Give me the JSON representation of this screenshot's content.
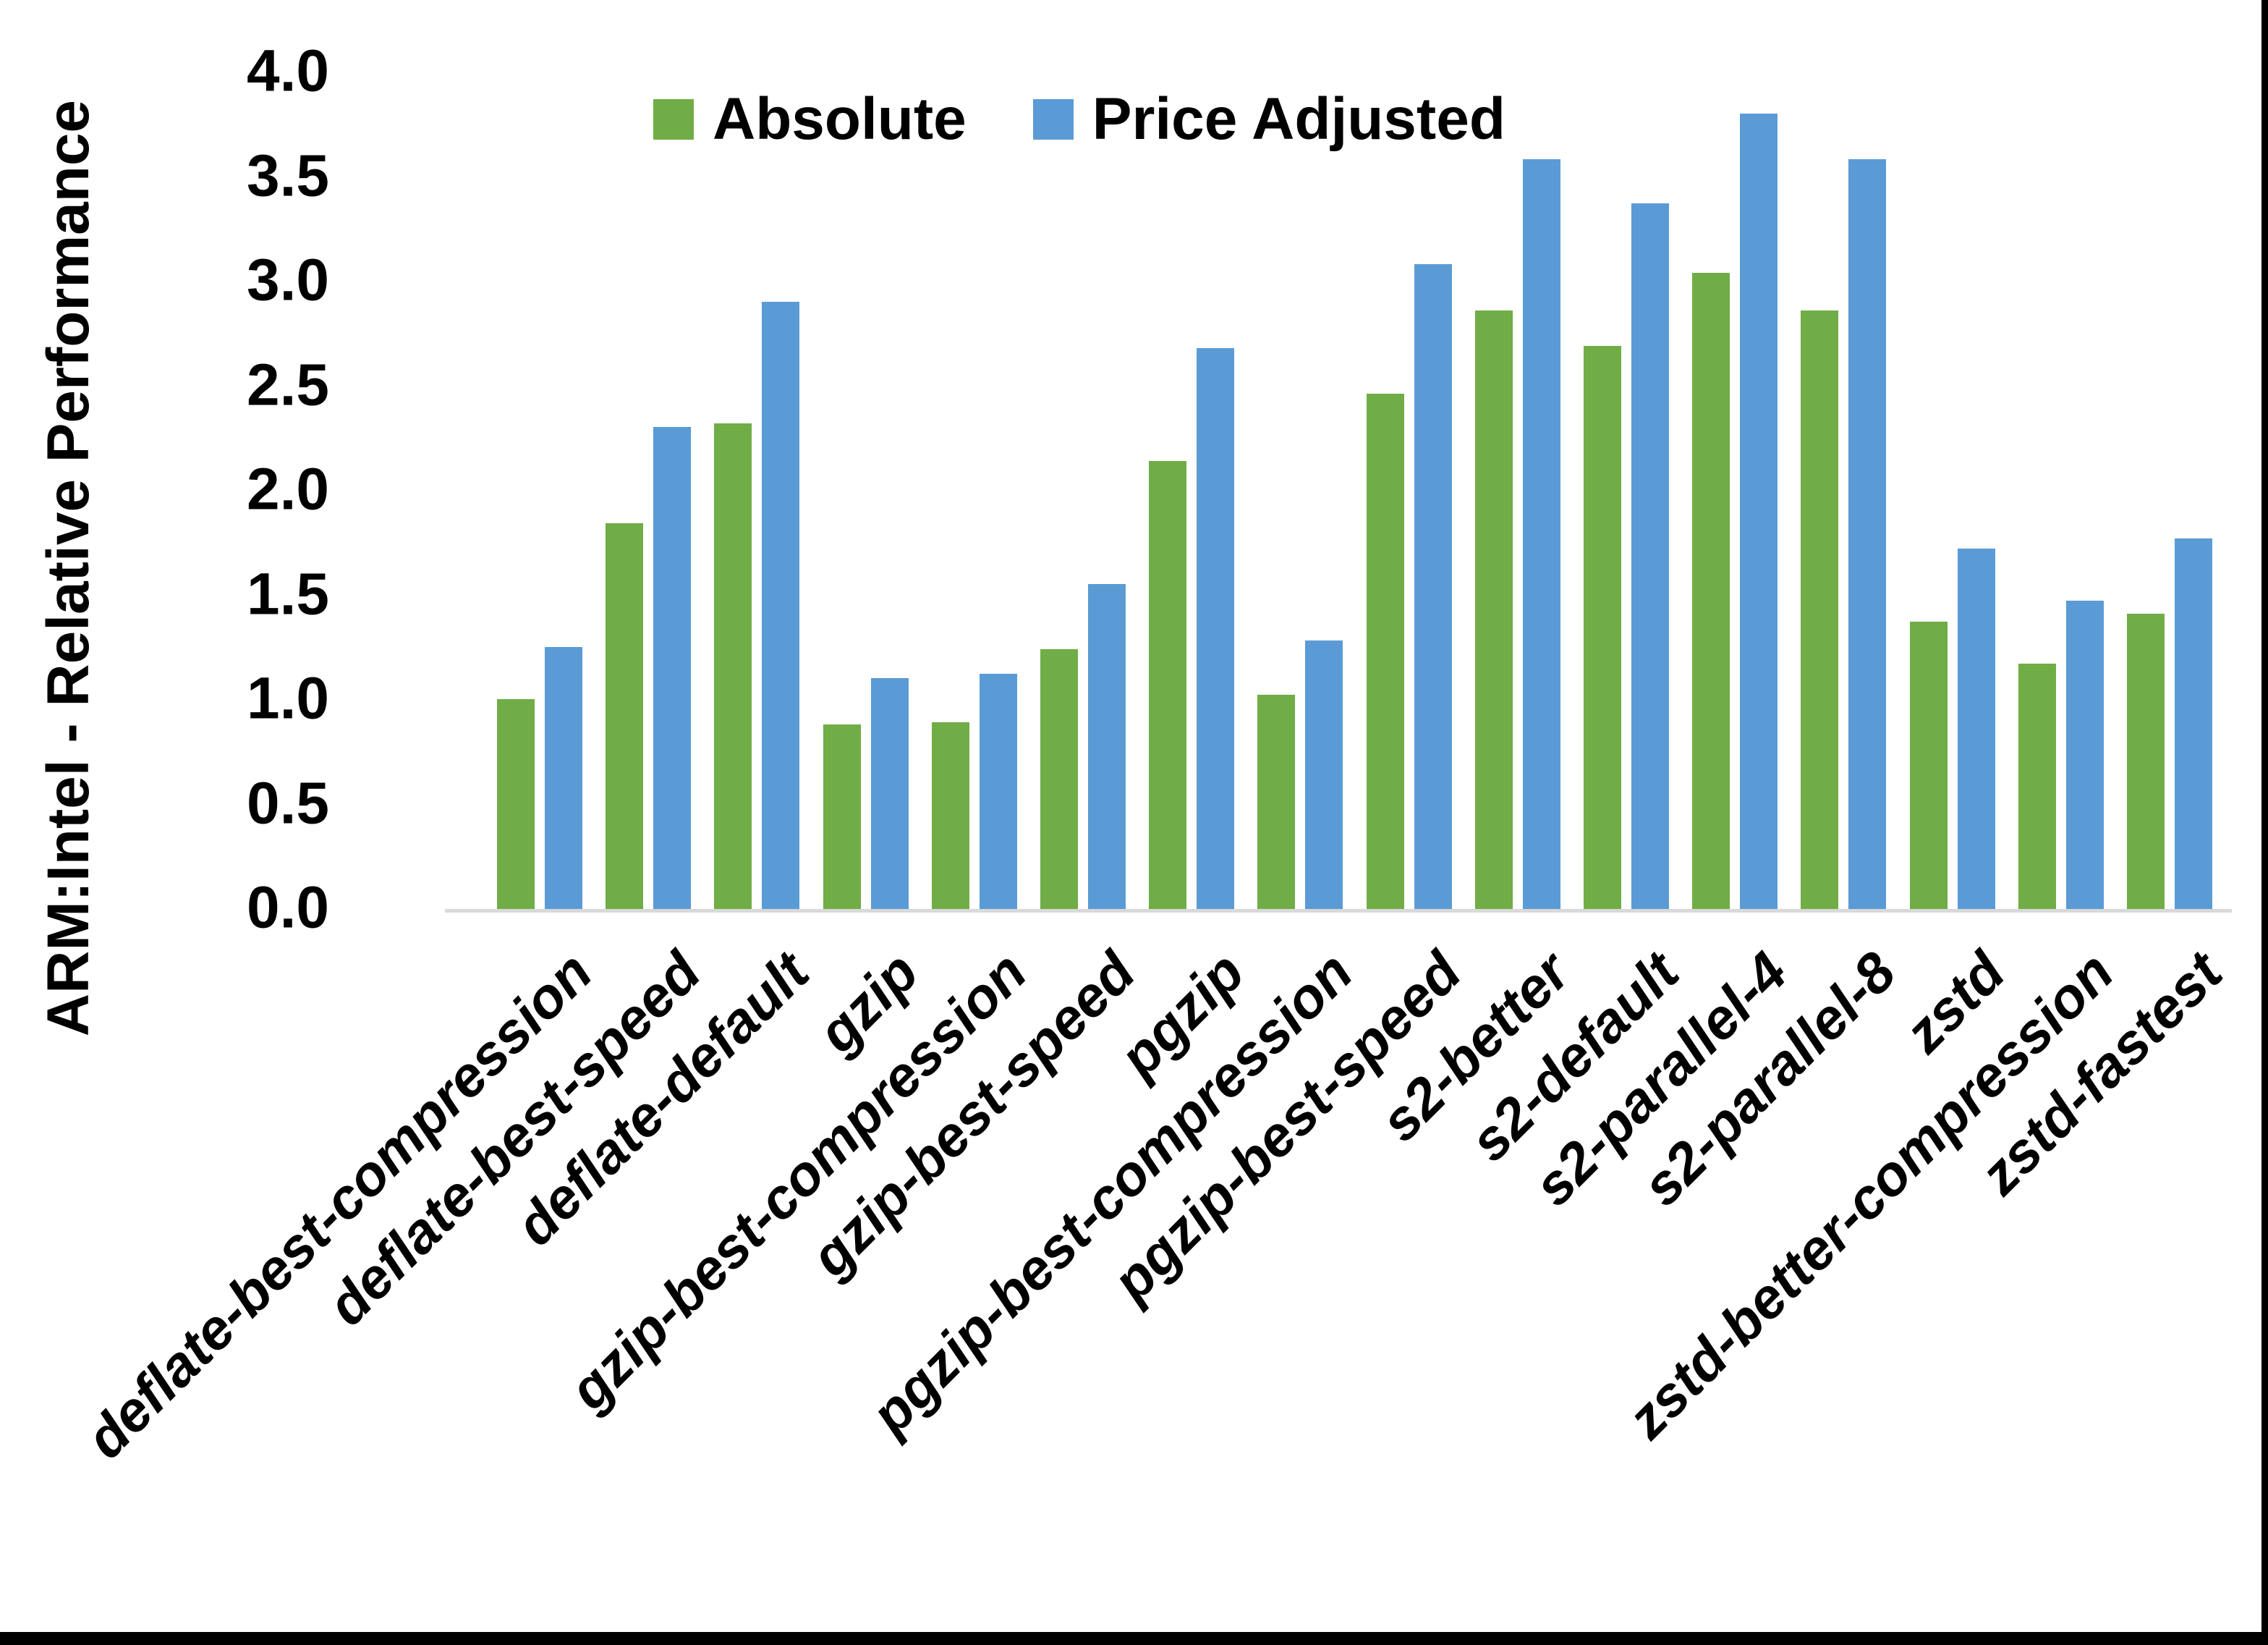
{
  "chart_data": {
    "type": "bar",
    "title": "",
    "xlabel": "",
    "ylabel": "ARM:Intel - Relative Performance",
    "ylim": [
      0.0,
      4.0
    ],
    "yticks": [
      "0.0",
      "0.5",
      "1.0",
      "1.5",
      "2.0",
      "2.5",
      "3.0",
      "3.5",
      "4.0"
    ],
    "grid": false,
    "legend_position": "top-center",
    "axis_line_color": "#D9D9D9",
    "categories": [
      "deflate-best-compression",
      "deflate-best-speed",
      "deflate-default",
      "gzip",
      "gzip-best-compression",
      "gzip-best-speed",
      "pgzip",
      "pgzip-best-compression",
      "pgzip-best-speed",
      "s2-better",
      "s2-default",
      "s2-parallel-4",
      "s2-parallel-8",
      "zstd",
      "zstd-better-compression",
      "zstd-fastest"
    ],
    "series": [
      {
        "name": "Absolute",
        "color": "#70AD47",
        "values": [
          1.01,
          1.85,
          2.33,
          0.89,
          0.9,
          1.25,
          2.15,
          1.03,
          2.47,
          2.87,
          2.7,
          3.05,
          2.87,
          1.38,
          1.18,
          1.42
        ]
      },
      {
        "name": "Price Adjusted",
        "color": "#5B9BD5",
        "values": [
          1.26,
          2.31,
          2.91,
          1.11,
          1.13,
          1.56,
          2.69,
          1.29,
          3.09,
          3.59,
          3.38,
          3.81,
          3.59,
          1.73,
          1.48,
          1.78
        ]
      }
    ]
  },
  "frame": {
    "border_color": "#000000"
  }
}
